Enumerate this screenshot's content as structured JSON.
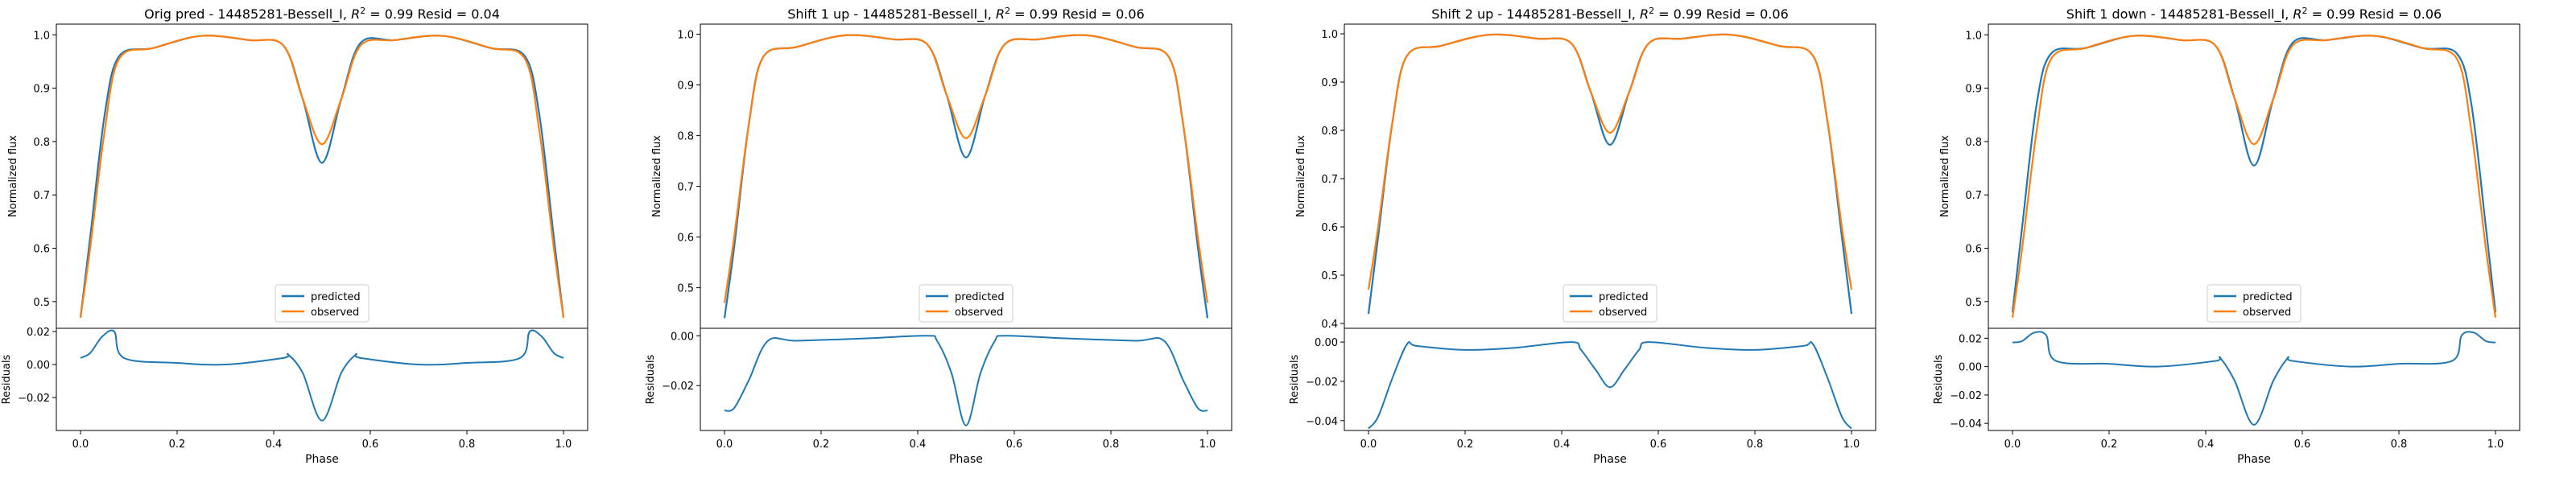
{
  "chart_data": [
    {
      "type": "line",
      "title": "Orig pred - 14485281-Bessell_I, R² = 0.99 Resid = 0.04",
      "title_parts": {
        "prefix": "Orig pred - 14485281-Bessell_I, ",
        "r2_symbol": "R",
        "r2_sup": "2",
        "suffix": " = 0.99 Resid = 0.04"
      },
      "xlabel": "Phase",
      "ylabel_top": "Normalized flux",
      "ylabel_bottom": "Residuals",
      "xlim": [
        -0.05,
        1.05
      ],
      "ylim_top": [
        0.45,
        1.02
      ],
      "ylim_bottom": [
        -0.04,
        0.022
      ],
      "xticks": [
        "0.0",
        "0.2",
        "0.4",
        "0.6",
        "0.8",
        "1.0"
      ],
      "yticks_top": [
        "0.5",
        "0.6",
        "0.7",
        "0.8",
        "0.9",
        "1.0"
      ],
      "yticks_bottom": [
        "−0.02",
        "0.00",
        "0.02"
      ],
      "legend": {
        "position": "lower center",
        "entries": [
          "predicted",
          "observed"
        ]
      },
      "series": [
        {
          "name": "predicted",
          "color": "#1f77b4",
          "x": [
            0.0,
            0.02,
            0.05,
            0.08,
            0.15,
            0.25,
            0.35,
            0.42,
            0.46,
            0.5,
            0.54,
            0.58,
            0.65,
            0.75,
            0.85,
            0.92,
            0.95,
            0.98,
            1.0
          ],
          "y": [
            0.47,
            0.62,
            0.85,
            0.96,
            0.975,
            0.998,
            0.99,
            0.98,
            0.88,
            0.76,
            0.88,
            0.985,
            0.99,
            0.998,
            0.975,
            0.96,
            0.85,
            0.62,
            0.47
          ]
        },
        {
          "name": "observed",
          "color": "#ff7f0e",
          "x": [
            0.0,
            0.02,
            0.05,
            0.08,
            0.15,
            0.25,
            0.35,
            0.42,
            0.46,
            0.5,
            0.54,
            0.58,
            0.65,
            0.75,
            0.85,
            0.92,
            0.95,
            0.98,
            1.0
          ],
          "y": [
            0.47,
            0.6,
            0.82,
            0.955,
            0.975,
            0.998,
            0.99,
            0.98,
            0.88,
            0.795,
            0.88,
            0.98,
            0.99,
            0.998,
            0.975,
            0.955,
            0.82,
            0.6,
            0.47
          ]
        }
      ],
      "residuals": {
        "color": "#1f77b4",
        "x": [
          0.0,
          0.02,
          0.045,
          0.07,
          0.09,
          0.2,
          0.3,
          0.42,
          0.43,
          0.46,
          0.5,
          0.54,
          0.57,
          0.58,
          0.7,
          0.8,
          0.91,
          0.93,
          0.955,
          0.98,
          1.0
        ],
        "y": [
          0.004,
          0.007,
          0.017,
          0.02,
          0.004,
          0.001,
          0.0,
          0.004,
          0.006,
          -0.005,
          -0.034,
          -0.005,
          0.006,
          0.004,
          0.0,
          0.001,
          0.004,
          0.02,
          0.017,
          0.007,
          0.004
        ]
      }
    },
    {
      "type": "line",
      "title": "Shift 1 up - 14485281-Bessell_I, R² = 0.99 Resid = 0.06",
      "title_parts": {
        "prefix": "Shift 1 up - 14485281-Bessell_I, ",
        "r2_symbol": "R",
        "r2_sup": "2",
        "suffix": " = 0.99 Resid = 0.06"
      },
      "xlabel": "Phase",
      "ylabel_top": "Normalized flux",
      "ylabel_bottom": "Residuals",
      "xlim": [
        -0.05,
        1.05
      ],
      "ylim_top": [
        0.42,
        1.02
      ],
      "ylim_bottom": [
        -0.038,
        0.003
      ],
      "xticks": [
        "0.0",
        "0.2",
        "0.4",
        "0.6",
        "0.8",
        "1.0"
      ],
      "yticks_top": [
        "0.5",
        "0.6",
        "0.7",
        "0.8",
        "0.9",
        "1.0"
      ],
      "yticks_bottom": [
        "−0.02",
        "0.00"
      ],
      "legend": {
        "position": "lower center",
        "entries": [
          "predicted",
          "observed"
        ]
      },
      "series": [
        {
          "name": "predicted",
          "color": "#1f77b4",
          "x": [
            0.0,
            0.02,
            0.05,
            0.08,
            0.15,
            0.25,
            0.35,
            0.42,
            0.46,
            0.5,
            0.54,
            0.58,
            0.65,
            0.75,
            0.85,
            0.92,
            0.95,
            0.98,
            1.0
          ],
          "y": [
            0.44,
            0.58,
            0.82,
            0.955,
            0.975,
            0.998,
            0.99,
            0.98,
            0.88,
            0.757,
            0.88,
            0.98,
            0.99,
            0.998,
            0.975,
            0.955,
            0.82,
            0.58,
            0.44
          ]
        },
        {
          "name": "observed",
          "color": "#ff7f0e",
          "x": [
            0.0,
            0.02,
            0.05,
            0.08,
            0.15,
            0.25,
            0.35,
            0.42,
            0.46,
            0.5,
            0.54,
            0.58,
            0.65,
            0.75,
            0.85,
            0.92,
            0.95,
            0.98,
            1.0
          ],
          "y": [
            0.47,
            0.6,
            0.82,
            0.955,
            0.975,
            0.998,
            0.99,
            0.98,
            0.88,
            0.795,
            0.88,
            0.98,
            0.99,
            0.998,
            0.975,
            0.955,
            0.82,
            0.6,
            0.47
          ]
        }
      ],
      "residuals": {
        "color": "#1f77b4",
        "x": [
          0.0,
          0.02,
          0.05,
          0.09,
          0.15,
          0.3,
          0.42,
          0.44,
          0.47,
          0.5,
          0.53,
          0.56,
          0.58,
          0.7,
          0.85,
          0.91,
          0.95,
          0.98,
          1.0
        ],
        "y": [
          -0.03,
          -0.029,
          -0.018,
          -0.002,
          -0.002,
          -0.001,
          0.0,
          -0.002,
          -0.015,
          -0.036,
          -0.015,
          -0.002,
          0.0,
          -0.001,
          -0.002,
          -0.002,
          -0.018,
          -0.029,
          -0.03
        ]
      }
    },
    {
      "type": "line",
      "title": "Shift 2 up - 14485281-Bessell_I, R² = 0.99 Resid = 0.06",
      "title_parts": {
        "prefix": "Shift 2 up - 14485281-Bessell_I, ",
        "r2_symbol": "R",
        "r2_sup": "2",
        "suffix": " = 0.99 Resid = 0.06"
      },
      "xlabel": "Phase",
      "ylabel_top": "Normalized flux",
      "ylabel_bottom": "Residuals",
      "xlim": [
        -0.05,
        1.05
      ],
      "ylim_top": [
        0.39,
        1.02
      ],
      "ylim_bottom": [
        -0.045,
        0.007
      ],
      "xticks": [
        "0.0",
        "0.2",
        "0.4",
        "0.6",
        "0.8",
        "1.0"
      ],
      "yticks_top": [
        "0.4",
        "0.5",
        "0.6",
        "0.7",
        "0.8",
        "0.9",
        "1.0"
      ],
      "yticks_bottom": [
        "−0.04",
        "−0.02",
        "0.00"
      ],
      "legend": {
        "position": "lower center",
        "entries": [
          "predicted",
          "observed"
        ]
      },
      "series": [
        {
          "name": "predicted",
          "color": "#1f77b4",
          "x": [
            0.0,
            0.02,
            0.05,
            0.08,
            0.15,
            0.25,
            0.35,
            0.42,
            0.46,
            0.5,
            0.54,
            0.58,
            0.65,
            0.75,
            0.85,
            0.92,
            0.95,
            0.98,
            1.0
          ],
          "y": [
            0.42,
            0.58,
            0.82,
            0.955,
            0.975,
            0.998,
            0.99,
            0.98,
            0.88,
            0.77,
            0.88,
            0.98,
            0.99,
            0.998,
            0.975,
            0.955,
            0.82,
            0.58,
            0.42
          ]
        },
        {
          "name": "observed",
          "color": "#ff7f0e",
          "x": [
            0.0,
            0.02,
            0.05,
            0.08,
            0.15,
            0.25,
            0.35,
            0.42,
            0.46,
            0.5,
            0.54,
            0.58,
            0.65,
            0.75,
            0.85,
            0.92,
            0.95,
            0.98,
            1.0
          ],
          "y": [
            0.47,
            0.6,
            0.82,
            0.955,
            0.975,
            0.998,
            0.99,
            0.98,
            0.88,
            0.795,
            0.88,
            0.98,
            0.99,
            0.998,
            0.975,
            0.955,
            0.82,
            0.6,
            0.47
          ]
        }
      ],
      "residuals": {
        "color": "#1f77b4",
        "x": [
          0.0,
          0.02,
          0.05,
          0.08,
          0.1,
          0.2,
          0.3,
          0.42,
          0.44,
          0.47,
          0.5,
          0.53,
          0.56,
          0.58,
          0.7,
          0.8,
          0.9,
          0.92,
          0.95,
          0.98,
          1.0
        ],
        "y": [
          -0.044,
          -0.038,
          -0.018,
          -0.001,
          -0.002,
          -0.004,
          -0.003,
          0.0,
          -0.004,
          -0.014,
          -0.023,
          -0.014,
          -0.004,
          0.0,
          -0.003,
          -0.004,
          -0.002,
          -0.001,
          -0.018,
          -0.038,
          -0.044
        ]
      }
    },
    {
      "type": "line",
      "title": "Shift 1 down - 14485281-Bessell_I, R² = 0.99 Resid = 0.06",
      "title_parts": {
        "prefix": "Shift 1 down - 14485281-Bessell_I, ",
        "r2_symbol": "R",
        "r2_sup": "2",
        "suffix": " = 0.99 Resid = 0.06"
      },
      "xlabel": "Phase",
      "ylabel_top": "Normalized flux",
      "ylabel_bottom": "Residuals",
      "xlim": [
        -0.05,
        1.05
      ],
      "ylim_top": [
        0.45,
        1.02
      ],
      "ylim_bottom": [
        -0.045,
        0.027
      ],
      "xticks": [
        "0.0",
        "0.2",
        "0.4",
        "0.6",
        "0.8",
        "1.0"
      ],
      "yticks_top": [
        "0.5",
        "0.6",
        "0.7",
        "0.8",
        "0.9",
        "1.0"
      ],
      "yticks_bottom": [
        "−0.04",
        "−0.02",
        "0.00",
        "0.02"
      ],
      "legend": {
        "position": "lower center",
        "entries": [
          "predicted",
          "observed"
        ]
      },
      "series": [
        {
          "name": "predicted",
          "color": "#1f77b4",
          "x": [
            0.0,
            0.02,
            0.05,
            0.08,
            0.15,
            0.25,
            0.35,
            0.42,
            0.46,
            0.5,
            0.54,
            0.58,
            0.65,
            0.75,
            0.85,
            0.92,
            0.95,
            0.98,
            1.0
          ],
          "y": [
            0.48,
            0.64,
            0.87,
            0.965,
            0.975,
            0.998,
            0.99,
            0.98,
            0.88,
            0.755,
            0.88,
            0.985,
            0.99,
            0.998,
            0.975,
            0.965,
            0.87,
            0.64,
            0.48
          ]
        },
        {
          "name": "observed",
          "color": "#ff7f0e",
          "x": [
            0.0,
            0.02,
            0.05,
            0.08,
            0.15,
            0.25,
            0.35,
            0.42,
            0.46,
            0.5,
            0.54,
            0.58,
            0.65,
            0.75,
            0.85,
            0.92,
            0.95,
            0.98,
            1.0
          ],
          "y": [
            0.47,
            0.6,
            0.82,
            0.955,
            0.975,
            0.998,
            0.99,
            0.98,
            0.88,
            0.795,
            0.88,
            0.98,
            0.99,
            0.998,
            0.975,
            0.955,
            0.82,
            0.6,
            0.47
          ]
        }
      ],
      "residuals": {
        "color": "#1f77b4",
        "x": [
          0.0,
          0.02,
          0.045,
          0.07,
          0.09,
          0.2,
          0.3,
          0.42,
          0.43,
          0.46,
          0.5,
          0.54,
          0.57,
          0.58,
          0.7,
          0.8,
          0.91,
          0.93,
          0.955,
          0.98,
          1.0
        ],
        "y": [
          0.017,
          0.018,
          0.024,
          0.022,
          0.004,
          0.002,
          0.0,
          0.004,
          0.006,
          -0.01,
          -0.041,
          -0.01,
          0.006,
          0.004,
          0.0,
          0.002,
          0.004,
          0.022,
          0.024,
          0.018,
          0.017
        ]
      }
    }
  ]
}
